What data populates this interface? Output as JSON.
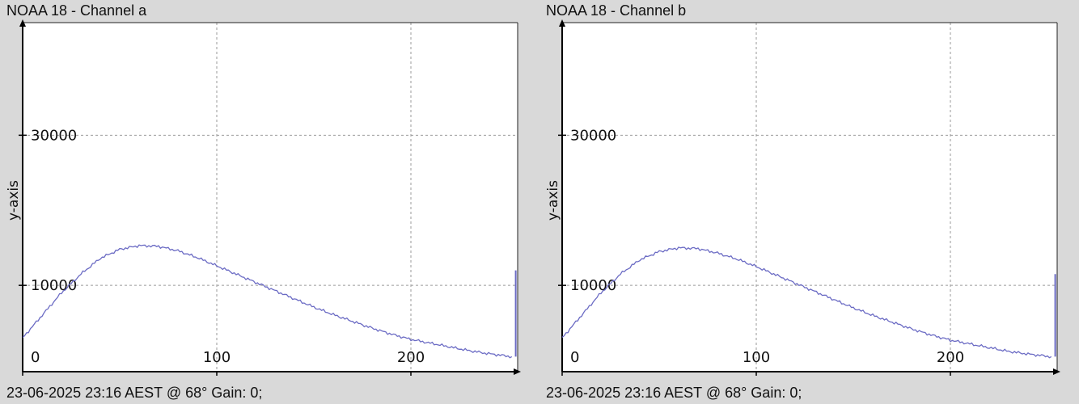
{
  "chart_data": [
    {
      "type": "line",
      "title": "NOAA 18 - Channel a",
      "footer": "23-06-2025 23:16 AEST @ 68° Gain: 0;",
      "ylabel": "y-axis",
      "xlim": [
        0,
        255
      ],
      "ylim": [
        -1500,
        45000
      ],
      "x_ticks": [
        0,
        100,
        200
      ],
      "y_ticks": [
        10000,
        30000
      ],
      "grid": true,
      "series_color": "#6b6bc4",
      "series": [
        {
          "x": [
            0,
            10,
            20,
            30,
            40,
            50,
            60,
            70,
            80,
            90,
            100,
            110,
            120,
            130,
            140,
            150,
            160,
            170,
            180,
            190,
            200,
            210,
            220,
            230,
            240,
            252
          ],
          "y": [
            3000,
            6000,
            9000,
            11500,
            13600,
            14800,
            15300,
            15200,
            14600,
            13700,
            12600,
            11500,
            10400,
            9300,
            8200,
            7100,
            6100,
            5200,
            4300,
            3500,
            2800,
            2300,
            1800,
            1300,
            900,
            500
          ]
        }
      ],
      "end_spike": {
        "x": 254,
        "y_from": 500,
        "y_to": 12000
      }
    },
    {
      "type": "line",
      "title": "NOAA 18 - Channel b",
      "footer": "23-06-2025 23:16 AEST @ 68° Gain: 0;",
      "ylabel": "y-axis",
      "xlim": [
        0,
        255
      ],
      "ylim": [
        -1500,
        45000
      ],
      "x_ticks": [
        0,
        100,
        200
      ],
      "y_ticks": [
        10000,
        30000
      ],
      "grid": true,
      "series_color": "#6b6bc4",
      "series": [
        {
          "x": [
            0,
            10,
            20,
            30,
            40,
            50,
            60,
            70,
            80,
            90,
            100,
            110,
            120,
            130,
            140,
            150,
            160,
            170,
            180,
            190,
            200,
            210,
            220,
            230,
            240,
            252
          ],
          "y": [
            3000,
            6000,
            9000,
            11500,
            13400,
            14500,
            15000,
            14900,
            14300,
            13500,
            12500,
            11400,
            10300,
            9200,
            8100,
            7000,
            6000,
            5100,
            4200,
            3400,
            2700,
            2200,
            1700,
            1200,
            850,
            500
          ]
        }
      ],
      "end_spike": {
        "x": 254,
        "y_from": 500,
        "y_to": 11500
      }
    }
  ]
}
